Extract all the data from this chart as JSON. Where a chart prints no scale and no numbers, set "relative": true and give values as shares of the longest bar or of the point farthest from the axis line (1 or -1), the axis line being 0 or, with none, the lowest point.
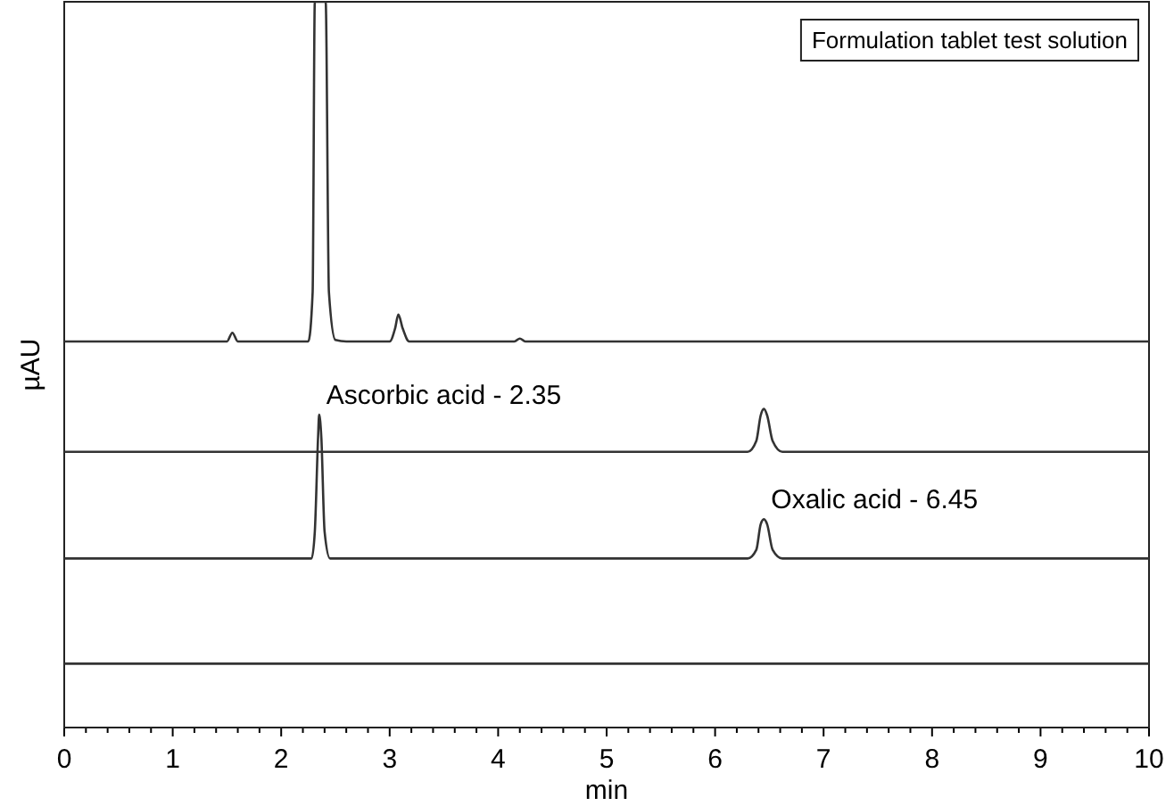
{
  "chart_data": {
    "type": "line",
    "relative": true,
    "xlabel": "min",
    "ylabel": "µAU",
    "xlim": [
      0,
      10
    ],
    "xticks": [
      0,
      {
        "value": 0.2,
        "label": null
      },
      {
        "value": 0.4,
        "label": null
      },
      {
        "value": 0.6,
        "label": null
      },
      {
        "value": 0.8,
        "label": null
      },
      1,
      {
        "value": 1.2,
        "label": null
      },
      {
        "value": 1.4,
        "label": null
      },
      {
        "value": 1.6,
        "label": null
      },
      {
        "value": 1.8,
        "label": null
      },
      2,
      {
        "value": 2.2,
        "label": null
      },
      {
        "value": 2.4,
        "label": null
      },
      {
        "value": 2.6,
        "label": null
      },
      {
        "value": 2.8,
        "label": null
      },
      3,
      {
        "value": 3.2,
        "label": null
      },
      {
        "value": 3.4,
        "label": null
      },
      {
        "value": 3.6,
        "label": null
      },
      {
        "value": 3.8,
        "label": null
      },
      4,
      {
        "value": 4.2,
        "label": null
      },
      {
        "value": 4.4,
        "label": null
      },
      {
        "value": 4.6,
        "label": null
      },
      {
        "value": 4.8,
        "label": null
      },
      5,
      {
        "value": 5.2,
        "label": null
      },
      {
        "value": 5.4,
        "label": null
      },
      {
        "value": 5.6,
        "label": null
      },
      {
        "value": 5.8,
        "label": null
      },
      6,
      {
        "value": 6.2,
        "label": null
      },
      {
        "value": 6.4,
        "label": null
      },
      {
        "value": 6.6,
        "label": null
      },
      {
        "value": 6.8,
        "label": null
      },
      7,
      {
        "value": 7.2,
        "label": null
      },
      {
        "value": 7.4,
        "label": null
      },
      {
        "value": 7.6,
        "label": null
      },
      {
        "value": 7.8,
        "label": null
      },
      8,
      {
        "value": 8.2,
        "label": null
      },
      {
        "value": 8.4,
        "label": null
      },
      {
        "value": 8.6,
        "label": null
      },
      {
        "value": 8.8,
        "label": null
      },
      9,
      {
        "value": 9.2,
        "label": null
      },
      {
        "value": 9.4,
        "label": null
      },
      {
        "value": 9.6,
        "label": null
      },
      {
        "value": 9.8,
        "label": null
      },
      10
    ],
    "marker": "none",
    "line_style": "solid",
    "grid": false,
    "series": [
      {
        "color": "#333333",
        "x": [
          0,
          1.5,
          1.55,
          1.6,
          2.25,
          2.29,
          2.31,
          2.41,
          2.44,
          2.5,
          2.6,
          3.0,
          3.05,
          3.08,
          3.12,
          3.18,
          4.15,
          4.2,
          4.25,
          10
        ],
        "values": [
          0.532,
          0.532,
          0.544,
          0.532,
          0.532,
          0.6,
          1,
          1,
          0.6,
          0.534,
          0.532,
          0.532,
          0.55,
          0.569,
          0.55,
          0.532,
          0.532,
          0.536,
          0.532,
          0.532
        ]
      },
      {
        "color": "#333333",
        "x": [
          0,
          6.3,
          6.38,
          6.42,
          6.45,
          6.48,
          6.53,
          6.62,
          10
        ],
        "values": [
          0.38,
          0.38,
          0.395,
          0.43,
          0.439,
          0.43,
          0.395,
          0.38,
          0.38
        ]
      },
      {
        "color": "#333333",
        "x": [
          0,
          2.28,
          2.31,
          2.34,
          2.35,
          2.37,
          2.4,
          2.45,
          6.3,
          6.38,
          6.42,
          6.45,
          6.48,
          6.53,
          6.62,
          10
        ],
        "values": [
          0.233,
          0.233,
          0.27,
          0.4,
          0.431,
          0.4,
          0.27,
          0.233,
          0.233,
          0.245,
          0.28,
          0.287,
          0.28,
          0.245,
          0.233,
          0.233
        ]
      },
      {
        "color": "#333333",
        "x": [
          0,
          10
        ],
        "values": [
          0.088,
          0.088
        ]
      }
    ],
    "annotations": [
      "Formulation tablet test solution",
      {
        "text": "Ascorbic acid - 2.35",
        "x": 2.35,
        "y": 0.431
      },
      {
        "text": "Oxalic acid - 6.45",
        "x": 6.45,
        "y": 0.287
      }
    ]
  }
}
